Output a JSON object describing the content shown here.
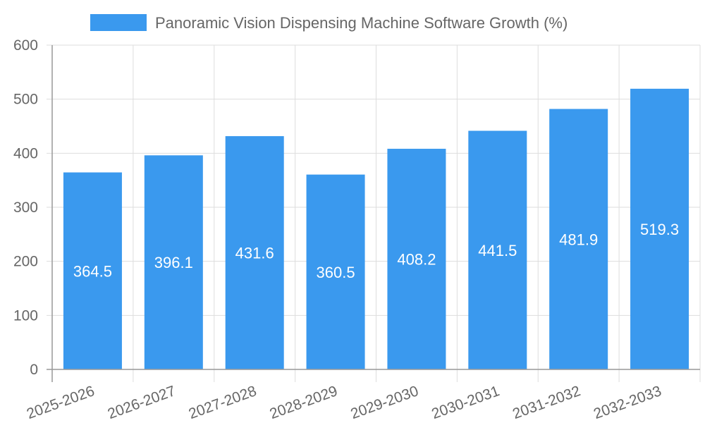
{
  "chart_data": {
    "type": "bar",
    "categories": [
      "2025-2026",
      "2026-2027",
      "2027-2028",
      "2028-2029",
      "2029-2030",
      "2030-2031",
      "2031-2032",
      "2032-2033"
    ],
    "series": [
      {
        "name": "Panoramic Vision Dispensing Machine Software Growth (%)",
        "values": [
          364.5,
          396.1,
          431.6,
          360.5,
          408.2,
          441.5,
          481.9,
          519.3
        ]
      }
    ],
    "data_labels": [
      "364.5",
      "396.1",
      "431.6",
      "360.5",
      "408.2",
      "441.5",
      "481.9",
      "519.3"
    ],
    "y_ticks": [
      "0",
      "100",
      "200",
      "300",
      "400",
      "500",
      "600"
    ],
    "ylim": [
      0,
      600
    ],
    "grid": true,
    "legend": "top-center",
    "colors": {
      "bar": "#3a99ee"
    }
  }
}
